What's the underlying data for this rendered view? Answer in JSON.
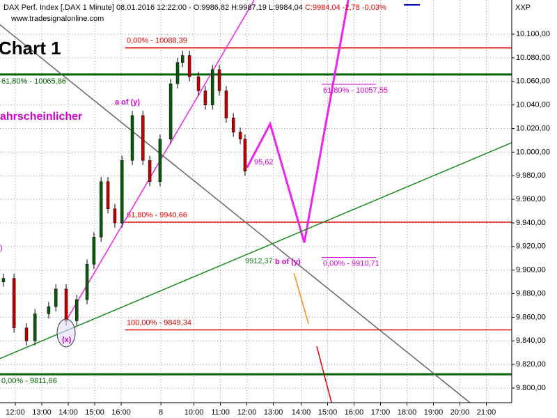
{
  "chart_data": {
    "type": "candlestick",
    "header": "DAX Perf. Index [.DAX  1 Minute] 08.01.2016 12:22:00 - O:9986,82 H:9987,19 L:9984,04",
    "header_change": "C:9984,04 -2,78 -0,03%",
    "source": "www.tradesignalonline.com",
    "axis_title": "XXP",
    "title": "Chart 1",
    "grid": true,
    "up_color": "#0a5a0a",
    "down_color": "#c00000",
    "xlim": [
      -0.58,
      18.76
    ],
    "ylim": [
      9787.6,
      10129
    ],
    "xticks": [
      {
        "value": 0,
        "label": "12:00"
      },
      {
        "value": 1,
        "label": "13:00"
      },
      {
        "value": 2,
        "label": "14:00"
      },
      {
        "value": 3,
        "label": "15:00"
      },
      {
        "value": 4,
        "label": "16:00"
      },
      {
        "value": 5.5,
        "label": "8"
      },
      {
        "value": 6.75,
        "label": "10:00"
      },
      {
        "value": 7.75,
        "label": "11:00"
      },
      {
        "value": 8.75,
        "label": "12:00"
      },
      {
        "value": 9.75,
        "label": "13:00"
      },
      {
        "value": 10.8,
        "label": "14:00"
      },
      {
        "value": 11.8,
        "label": "15:00"
      },
      {
        "value": 12.8,
        "label": "16:00"
      },
      {
        "value": 13.8,
        "label": "17:00"
      },
      {
        "value": 14.8,
        "label": "18:00"
      },
      {
        "value": 15.8,
        "label": "19:00"
      },
      {
        "value": 16.8,
        "label": "20:00"
      },
      {
        "value": 17.8,
        "label": "21:00"
      }
    ],
    "yticks": [
      {
        "value": 10100,
        "label": "10.100,00"
      },
      {
        "value": 10080,
        "label": "10.080,00"
      },
      {
        "value": 10060,
        "label": "10.060,00"
      },
      {
        "value": 10040,
        "label": "10.040,00"
      },
      {
        "value": 10020,
        "label": "10.020,00"
      },
      {
        "value": 10000,
        "label": "10.000,00"
      },
      {
        "value": 9980,
        "label": "9.980,00"
      },
      {
        "value": 9960,
        "label": "9.960,00"
      },
      {
        "value": 9940,
        "label": "9.940,00"
      },
      {
        "value": 9920,
        "label": "9.920,00"
      },
      {
        "value": 9900,
        "label": "9.900,00"
      },
      {
        "value": 9880,
        "label": "9.880,00"
      },
      {
        "value": 9860,
        "label": "9.860,00"
      },
      {
        "value": 9840,
        "label": "9.840,00"
      },
      {
        "value": 9820,
        "label": "9.820,00"
      },
      {
        "value": 9800,
        "label": "9.800,00"
      }
    ],
    "candles": {
      "x": [
        -0.45,
        -0.05,
        0.42,
        0.74,
        1.26,
        1.53,
        1.92,
        2.32,
        2.71,
        2.97,
        3.24,
        3.5,
        3.76,
        4.03,
        4.42,
        4.82,
        5.08,
        5.47,
        5.87,
        6.13,
        6.32,
        6.58,
        6.92,
        7.18,
        7.45,
        7.71,
        7.97,
        8.24,
        8.5,
        8.68
      ],
      "open": [
        9890,
        9893,
        9851,
        9840,
        9863,
        9869,
        9884,
        9857,
        9875,
        9905,
        9928,
        9975,
        9952,
        9940,
        9993,
        10031,
        9993,
        9975,
        10011,
        10058,
        10076,
        10082,
        10064,
        10052,
        10040,
        10070,
        10052,
        10029,
        10017,
        10011
      ],
      "high": [
        9897,
        9897,
        9855,
        9867,
        9873,
        9888,
        9888,
        9879,
        9909,
        9932,
        9979,
        9979,
        9956,
        9997,
        10035,
        10035,
        9997,
        10015,
        10062,
        10080,
        10086,
        10086,
        10068,
        10056,
        10074,
        10074,
        10056,
        10033,
        10021,
        10015
      ],
      "low": [
        9886,
        9847,
        9836,
        9836,
        9859,
        9865,
        9853,
        9853,
        9871,
        9901,
        9924,
        9948,
        9936,
        9936,
        9989,
        9989,
        9971,
        9971,
        10007,
        10054,
        10072,
        10060,
        10048,
        10036,
        10036,
        10048,
        10025,
        10013,
        10007,
        9980
      ],
      "close": [
        9893,
        9851,
        9840,
        9863,
        9869,
        9884,
        9857,
        9875,
        9905,
        9928,
        9975,
        9952,
        9940,
        9993,
        10031,
        9993,
        9975,
        10011,
        10058,
        10076,
        10082,
        10064,
        10052,
        10040,
        10070,
        10052,
        10029,
        10017,
        10011,
        9984
      ]
    },
    "levels": [
      {
        "value": 10088.39,
        "label": "0,00% - 10088,39",
        "color": "#e00000"
      },
      {
        "value": 10065.86,
        "label": "61,80% - 10065,86",
        "color": "#006400"
      },
      {
        "value": 9940.66,
        "label": "61,80% - 9940,66",
        "color": "#e00000"
      },
      {
        "value": 9849.34,
        "label": "100,00% - 9849,34",
        "color": "#e00000"
      },
      {
        "value": 9811.66,
        "label": "0,00% - 9811,66",
        "color": "#006400"
      },
      {
        "value": 10057.55,
        "label": "61,80% - 10057,55",
        "color": "#d000d0"
      },
      {
        "value": 9910.71,
        "label": "0,00% - 9910,71",
        "color": "#d000d0"
      }
    ],
    "drawings": [
      {
        "color": "#ee22ee",
        "x": [
          8.76,
          9.63,
          10.92,
          12.58
        ],
        "y": [
          9987,
          10024,
          9923.4,
          10129
        ]
      },
      {
        "color": "#ee22ee",
        "x": [
          1.92,
          9.03
        ],
        "y": [
          9857,
          10129
        ]
      },
      {
        "color": "#666666",
        "x": [
          -0.58,
          17.18
        ],
        "y": [
          10108,
          9787.6
        ]
      },
      {
        "color": "#1a8a1a",
        "x": [
          -0.58,
          18.76
        ],
        "y": [
          9825,
          10008
        ]
      },
      {
        "color": "#ff8c00",
        "x": [
          10.53,
          11.08
        ],
        "y": [
          9897.4,
          9854.3
        ]
      },
      {
        "color": "#dd0000",
        "x": [
          11.39,
          11.95
        ],
        "y": [
          9835.4,
          9787.6
        ]
      }
    ],
    "annotations": [
      {
        "text": "ahrscheinlicher",
        "color": "#d000d0"
      },
      {
        "text": ")",
        "color": "#d000d0"
      },
      {
        "text": "a of (y)",
        "color": "#d000d0"
      },
      {
        "text": "b of (y)",
        "color": "#d000d0"
      },
      {
        "text": "(x)",
        "color": "#d000d0"
      },
      {
        "text": "95,62",
        "color": "#d000d0"
      },
      {
        "text": "9912,37",
        "color": "#1a7a1a"
      }
    ]
  }
}
